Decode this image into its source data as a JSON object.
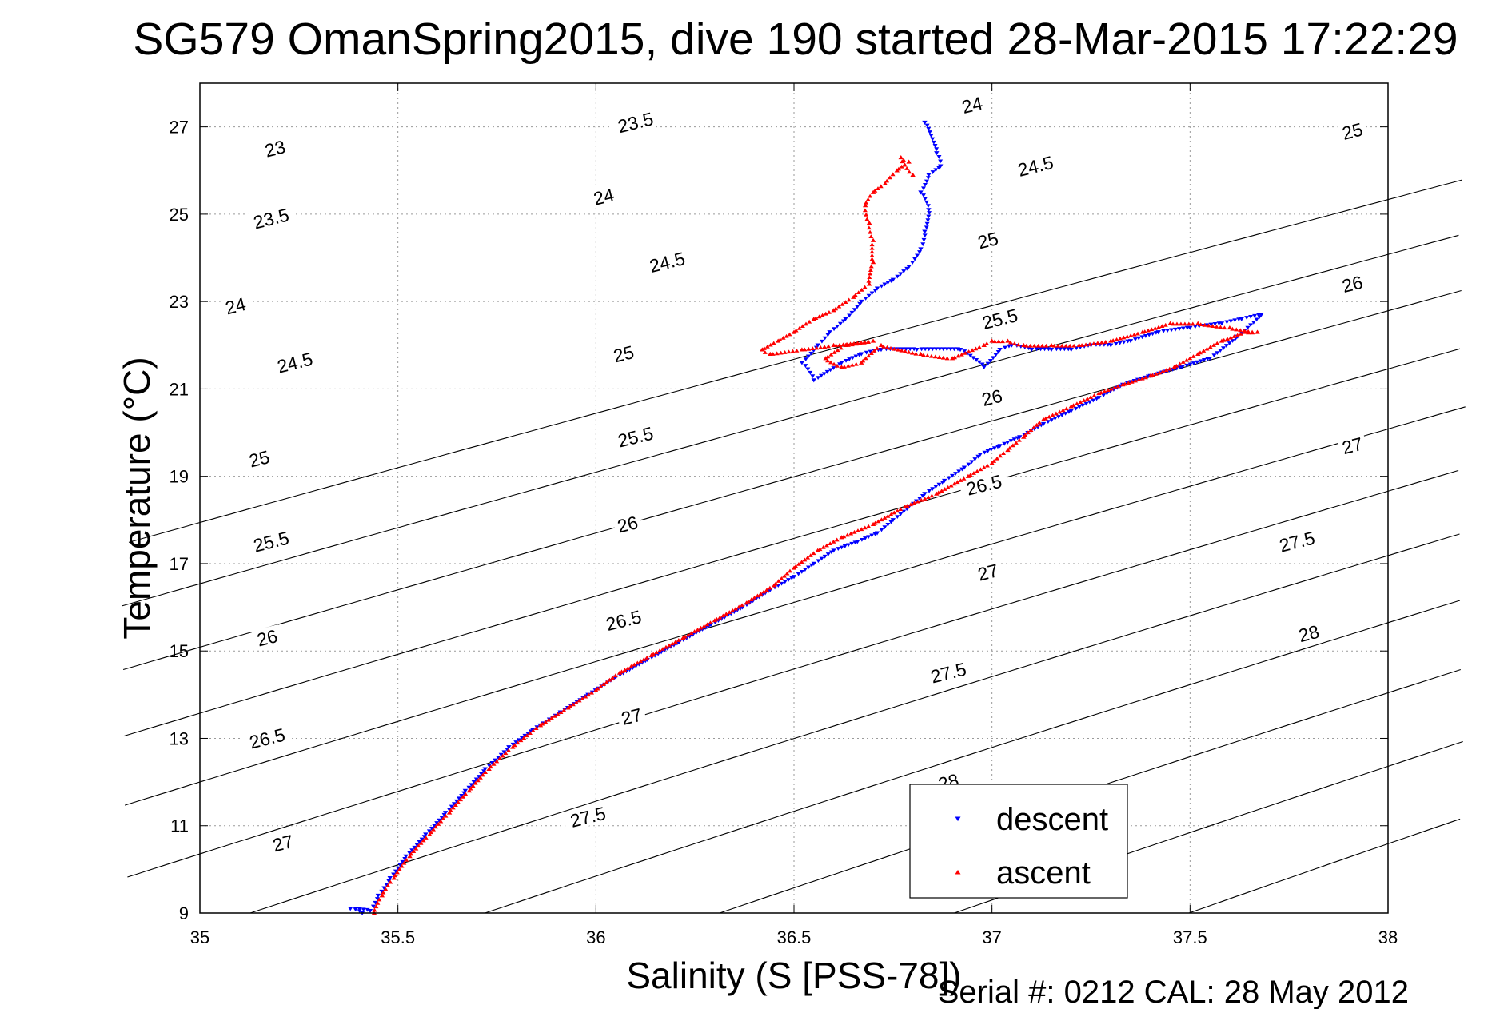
{
  "chart_data": {
    "type": "scatter",
    "title": "SG579 OmanSpring2015, dive 190 started 28-Mar-2015 17:22:29",
    "xlabel": "Salinity (S [PSS-78])",
    "ylabel": "Temperature (°C)",
    "xlim": [
      35,
      38
    ],
    "ylim": [
      9,
      28
    ],
    "x_ticks": [
      35,
      35.5,
      36,
      36.5,
      37,
      37.5,
      38
    ],
    "x_tick_labels": [
      "35",
      "35.5",
      "36",
      "36.5",
      "37",
      "37.5",
      "38"
    ],
    "y_ticks": [
      9,
      11,
      13,
      15,
      17,
      19,
      21,
      23,
      25,
      27
    ],
    "y_tick_labels": [
      "9",
      "11",
      "13",
      "15",
      "17",
      "19",
      "21",
      "23",
      "25",
      "27"
    ],
    "grid": true,
    "legend_position": "bottom-right",
    "footer": "Serial #: 0212  CAL: 28 May 2012",
    "density_contours": {
      "levels": [
        23,
        23.5,
        24,
        24.5,
        25,
        25.5,
        26,
        26.5,
        27,
        27.5,
        28
      ],
      "labels": [
        {
          "text": "23",
          "s": 35.19,
          "t": 26.5
        },
        {
          "text": "23.5",
          "s": 35.18,
          "t": 24.9
        },
        {
          "text": "24",
          "s": 35.09,
          "t": 22.9
        },
        {
          "text": "24.5",
          "s": 35.24,
          "t": 21.6
        },
        {
          "text": "25",
          "s": 35.15,
          "t": 19.4
        },
        {
          "text": "25.5",
          "s": 35.18,
          "t": 17.5
        },
        {
          "text": "26",
          "s": 35.17,
          "t": 15.3
        },
        {
          "text": "26.5",
          "s": 35.17,
          "t": 13.0
        },
        {
          "text": "27",
          "s": 35.21,
          "t": 10.6
        },
        {
          "text": "23.5",
          "s": 36.1,
          "t": 27.1
        },
        {
          "text": "24",
          "s": 36.02,
          "t": 25.4
        },
        {
          "text": "24.5",
          "s": 36.18,
          "t": 23.9
        },
        {
          "text": "25",
          "s": 36.07,
          "t": 21.8
        },
        {
          "text": "25.5",
          "s": 36.1,
          "t": 19.9
        },
        {
          "text": "26",
          "s": 36.08,
          "t": 17.9
        },
        {
          "text": "26.5",
          "s": 36.07,
          "t": 15.7
        },
        {
          "text": "27",
          "s": 36.09,
          "t": 13.5
        },
        {
          "text": "27.5",
          "s": 35.98,
          "t": 11.2
        },
        {
          "text": "24",
          "s": 36.95,
          "t": 27.5
        },
        {
          "text": "24.5",
          "s": 37.11,
          "t": 26.1
        },
        {
          "text": "25",
          "s": 36.99,
          "t": 24.4
        },
        {
          "text": "25.5",
          "s": 37.02,
          "t": 22.6
        },
        {
          "text": "26",
          "s": 37.0,
          "t": 20.8
        },
        {
          "text": "26.5",
          "s": 36.98,
          "t": 18.8
        },
        {
          "text": "27",
          "s": 36.99,
          "t": 16.8
        },
        {
          "text": "27.5",
          "s": 36.89,
          "t": 14.5
        },
        {
          "text": "28",
          "s": 36.89,
          "t": 12.0
        },
        {
          "text": "25",
          "s": 37.91,
          "t": 26.9
        },
        {
          "text": "26",
          "s": 37.91,
          "t": 23.4
        },
        {
          "text": "27",
          "s": 37.91,
          "t": 19.7
        },
        {
          "text": "27.5",
          "s": 37.77,
          "t": 17.5
        },
        {
          "text": "28",
          "s": 37.8,
          "t": 15.4
        }
      ]
    },
    "series": [
      {
        "name": "descent",
        "color": "#0000ff",
        "marker": "triangle-down",
        "points": [
          [
            36.83,
            27.1
          ],
          [
            36.86,
            26.4
          ],
          [
            36.87,
            26.1
          ],
          [
            36.84,
            25.9
          ],
          [
            36.82,
            25.5
          ],
          [
            36.84,
            25.1
          ],
          [
            36.83,
            24.6
          ],
          [
            36.82,
            24.2
          ],
          [
            36.79,
            23.8
          ],
          [
            36.75,
            23.5
          ],
          [
            36.71,
            23.3
          ],
          [
            36.67,
            23.0
          ],
          [
            36.63,
            22.6
          ],
          [
            36.59,
            22.3
          ],
          [
            36.56,
            22.0
          ],
          [
            36.52,
            21.6
          ],
          [
            36.55,
            21.2
          ],
          [
            36.62,
            21.6
          ],
          [
            36.67,
            21.8
          ],
          [
            36.72,
            21.9
          ],
          [
            36.81,
            21.9
          ],
          [
            36.92,
            21.9
          ],
          [
            36.98,
            21.5
          ],
          [
            37.02,
            21.9
          ],
          [
            37.05,
            22.0
          ],
          [
            37.1,
            21.9
          ],
          [
            37.15,
            21.9
          ],
          [
            37.2,
            21.9
          ],
          [
            37.25,
            22.0
          ],
          [
            37.3,
            22.0
          ],
          [
            37.35,
            22.1
          ],
          [
            37.42,
            22.3
          ],
          [
            37.5,
            22.4
          ],
          [
            37.58,
            22.5
          ],
          [
            37.63,
            22.6
          ],
          [
            37.68,
            22.7
          ],
          [
            37.62,
            22.2
          ],
          [
            37.55,
            21.7
          ],
          [
            37.48,
            21.5
          ],
          [
            37.4,
            21.3
          ],
          [
            37.33,
            21.1
          ],
          [
            37.27,
            20.8
          ],
          [
            37.2,
            20.5
          ],
          [
            37.13,
            20.2
          ],
          [
            37.07,
            19.9
          ],
          [
            37.02,
            19.7
          ],
          [
            36.97,
            19.5
          ],
          [
            36.93,
            19.2
          ],
          [
            36.88,
            18.9
          ],
          [
            36.83,
            18.6
          ],
          [
            36.79,
            18.3
          ],
          [
            36.75,
            18.0
          ],
          [
            36.71,
            17.7
          ],
          [
            36.66,
            17.5
          ],
          [
            36.6,
            17.3
          ],
          [
            36.55,
            17.0
          ],
          [
            36.5,
            16.7
          ],
          [
            36.44,
            16.4
          ],
          [
            36.37,
            16.0
          ],
          [
            36.29,
            15.6
          ],
          [
            36.21,
            15.2
          ],
          [
            36.13,
            14.8
          ],
          [
            36.05,
            14.4
          ],
          [
            35.98,
            14.0
          ],
          [
            35.91,
            13.6
          ],
          [
            35.84,
            13.2
          ],
          [
            35.78,
            12.8
          ],
          [
            35.72,
            12.3
          ],
          [
            35.67,
            11.8
          ],
          [
            35.62,
            11.3
          ],
          [
            35.57,
            10.8
          ],
          [
            35.52,
            10.3
          ],
          [
            35.48,
            9.8
          ],
          [
            35.45,
            9.4
          ],
          [
            35.43,
            9.05
          ],
          [
            35.38,
            9.1
          ],
          [
            35.41,
            9.0
          ]
        ]
      },
      {
        "name": "ascent",
        "color": "#ff0000",
        "marker": "triangle-up",
        "points": [
          [
            35.44,
            9.0
          ],
          [
            35.46,
            9.4
          ],
          [
            35.49,
            9.8
          ],
          [
            35.53,
            10.3
          ],
          [
            35.58,
            10.8
          ],
          [
            35.63,
            11.3
          ],
          [
            35.68,
            11.8
          ],
          [
            35.73,
            12.3
          ],
          [
            35.79,
            12.8
          ],
          [
            35.86,
            13.3
          ],
          [
            35.93,
            13.7
          ],
          [
            36.0,
            14.1
          ],
          [
            36.06,
            14.5
          ],
          [
            36.14,
            14.9
          ],
          [
            36.22,
            15.3
          ],
          [
            36.3,
            15.7
          ],
          [
            36.38,
            16.1
          ],
          [
            36.45,
            16.5
          ],
          [
            36.5,
            16.9
          ],
          [
            36.56,
            17.3
          ],
          [
            36.62,
            17.6
          ],
          [
            36.7,
            17.9
          ],
          [
            36.78,
            18.3
          ],
          [
            36.86,
            18.6
          ],
          [
            36.94,
            19.0
          ],
          [
            37.0,
            19.3
          ],
          [
            37.04,
            19.6
          ],
          [
            37.08,
            19.9
          ],
          [
            37.13,
            20.3
          ],
          [
            37.2,
            20.6
          ],
          [
            37.27,
            20.9
          ],
          [
            37.33,
            21.1
          ],
          [
            37.4,
            21.3
          ],
          [
            37.46,
            21.5
          ],
          [
            37.52,
            21.8
          ],
          [
            37.58,
            22.1
          ],
          [
            37.64,
            22.3
          ],
          [
            37.67,
            22.3
          ],
          [
            37.6,
            22.4
          ],
          [
            37.52,
            22.5
          ],
          [
            37.45,
            22.5
          ],
          [
            37.38,
            22.3
          ],
          [
            37.3,
            22.1
          ],
          [
            37.22,
            22.0
          ],
          [
            37.15,
            22.0
          ],
          [
            37.08,
            22.0
          ],
          [
            37.04,
            22.1
          ],
          [
            37.0,
            22.1
          ],
          [
            36.98,
            22.0
          ],
          [
            36.9,
            21.7
          ],
          [
            36.82,
            21.8
          ],
          [
            36.72,
            22.0
          ],
          [
            36.67,
            21.6
          ],
          [
            36.62,
            21.5
          ],
          [
            36.58,
            21.7
          ],
          [
            36.63,
            22.0
          ],
          [
            36.7,
            22.1
          ],
          [
            36.6,
            22.0
          ],
          [
            36.52,
            21.9
          ],
          [
            36.44,
            21.8
          ],
          [
            36.42,
            21.9
          ],
          [
            36.46,
            22.1
          ],
          [
            36.5,
            22.3
          ],
          [
            36.55,
            22.6
          ],
          [
            36.6,
            22.8
          ],
          [
            36.65,
            23.1
          ],
          [
            36.69,
            23.4
          ],
          [
            36.7,
            23.9
          ],
          [
            36.7,
            24.4
          ],
          [
            36.69,
            24.8
          ],
          [
            36.68,
            25.2
          ],
          [
            36.7,
            25.5
          ],
          [
            36.73,
            25.7
          ],
          [
            36.76,
            26.0
          ],
          [
            36.79,
            26.2
          ],
          [
            36.77,
            26.3
          ],
          [
            36.8,
            25.9
          ]
        ]
      }
    ]
  }
}
